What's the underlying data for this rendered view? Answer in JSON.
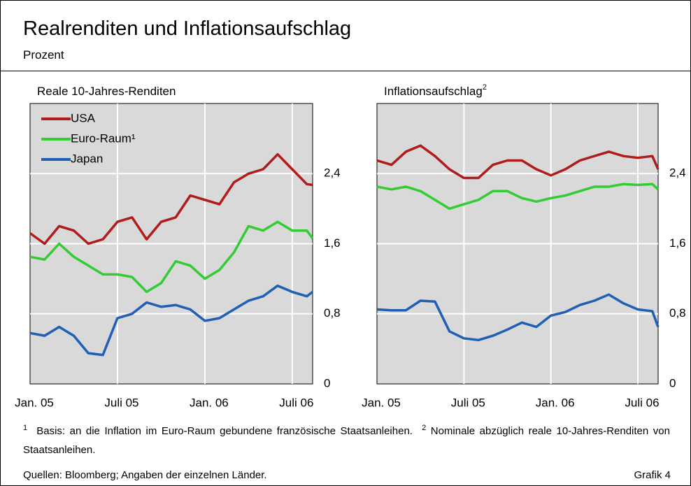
{
  "header": {
    "title": "Realrenditen und Inflationsaufschlag",
    "subtitle": "Prozent"
  },
  "chart_data": [
    {
      "type": "line",
      "title": "Reale 10-Jahres-Renditen",
      "x": [
        0,
        1,
        2,
        3,
        4,
        5,
        6,
        7,
        8,
        9,
        10,
        11,
        12,
        13,
        14,
        15,
        16,
        17,
        18,
        19,
        19.4
      ],
      "xlim": [
        0,
        19.4
      ],
      "xticks": [
        {
          "value": 0,
          "label": "Jan. 05"
        },
        {
          "value": 6,
          "label": "Juli 05"
        },
        {
          "value": 12,
          "label": "Jan. 06"
        },
        {
          "value": 18,
          "label": "Juli 06"
        }
      ],
      "ylim": [
        0,
        3.2
      ],
      "yticks": [
        0,
        {
          "value": 0.8,
          "label": "0,8"
        },
        {
          "value": 1.6,
          "label": "1,6"
        },
        {
          "value": 2.4,
          "label": "2,4"
        }
      ],
      "grid": true,
      "legend": "top-left",
      "series": [
        {
          "name": "USA",
          "color": "#b01c1c",
          "values": [
            1.72,
            1.6,
            1.8,
            1.75,
            1.6,
            1.65,
            1.85,
            1.9,
            1.65,
            1.85,
            1.9,
            2.15,
            2.1,
            2.05,
            2.3,
            2.4,
            2.45,
            2.62,
            2.45,
            2.28,
            2.27
          ]
        },
        {
          "name": "Euro-Raum¹",
          "color": "#33cc33",
          "values": [
            1.45,
            1.42,
            1.6,
            1.45,
            1.35,
            1.25,
            1.25,
            1.22,
            1.05,
            1.15,
            1.4,
            1.35,
            1.2,
            1.3,
            1.5,
            1.8,
            1.75,
            1.85,
            1.75,
            1.75,
            1.66
          ]
        },
        {
          "name": "Japan",
          "color": "#1f5fb5",
          "values": [
            0.58,
            0.55,
            0.65,
            0.55,
            0.35,
            0.33,
            0.75,
            0.8,
            0.93,
            0.88,
            0.9,
            0.85,
            0.72,
            0.75,
            0.85,
            0.95,
            1.0,
            1.12,
            1.05,
            1.0,
            1.05
          ]
        }
      ]
    },
    {
      "type": "line",
      "title": "Inflationsaufschlag",
      "title_note": "2",
      "x": [
        0,
        1,
        2,
        3,
        4,
        5,
        6,
        7,
        8,
        9,
        10,
        11,
        12,
        13,
        14,
        15,
        16,
        17,
        18,
        19,
        19.4
      ],
      "xlim": [
        0,
        19.4
      ],
      "xticks": [
        {
          "value": 0,
          "label": "Jan. 05"
        },
        {
          "value": 6,
          "label": "Juli 05"
        },
        {
          "value": 12,
          "label": "Jan. 06"
        },
        {
          "value": 18,
          "label": "Juli 06"
        }
      ],
      "ylim": [
        0,
        3.2
      ],
      "yticks": [
        0,
        {
          "value": 0.8,
          "label": "0,8"
        },
        {
          "value": 1.6,
          "label": "1,6"
        },
        {
          "value": 2.4,
          "label": "2,4"
        }
      ],
      "grid": true,
      "series": [
        {
          "color": "#b01c1c",
          "values": [
            2.55,
            2.5,
            2.65,
            2.72,
            2.6,
            2.45,
            2.35,
            2.35,
            2.5,
            2.55,
            2.55,
            2.45,
            2.38,
            2.45,
            2.55,
            2.6,
            2.65,
            2.6,
            2.58,
            2.6,
            2.45
          ]
        },
        {
          "color": "#33cc33",
          "values": [
            2.25,
            2.22,
            2.25,
            2.2,
            2.1,
            2.0,
            2.05,
            2.1,
            2.2,
            2.2,
            2.12,
            2.08,
            2.12,
            2.15,
            2.2,
            2.25,
            2.25,
            2.28,
            2.27,
            2.28,
            2.22
          ]
        },
        {
          "color": "#1f5fb5",
          "values": [
            0.85,
            0.84,
            0.84,
            0.95,
            0.94,
            0.6,
            0.52,
            0.5,
            0.55,
            0.62,
            0.7,
            0.65,
            0.78,
            0.82,
            0.9,
            0.95,
            1.02,
            0.92,
            0.85,
            0.83,
            0.65
          ]
        }
      ]
    }
  ],
  "footnotes": [
    {
      "mark": "1",
      "text": "Basis: an die Inflation im Euro-Raum gebundene französische Staatsanleihen."
    },
    {
      "mark": "2",
      "text": "Nominale abzüglich reale 10-Jahres-Renditen von Staatsanleihen."
    }
  ],
  "source": "Quellen: Bloomberg; Angaben der einzelnen Länder.",
  "figure_label": "Grafik 4"
}
